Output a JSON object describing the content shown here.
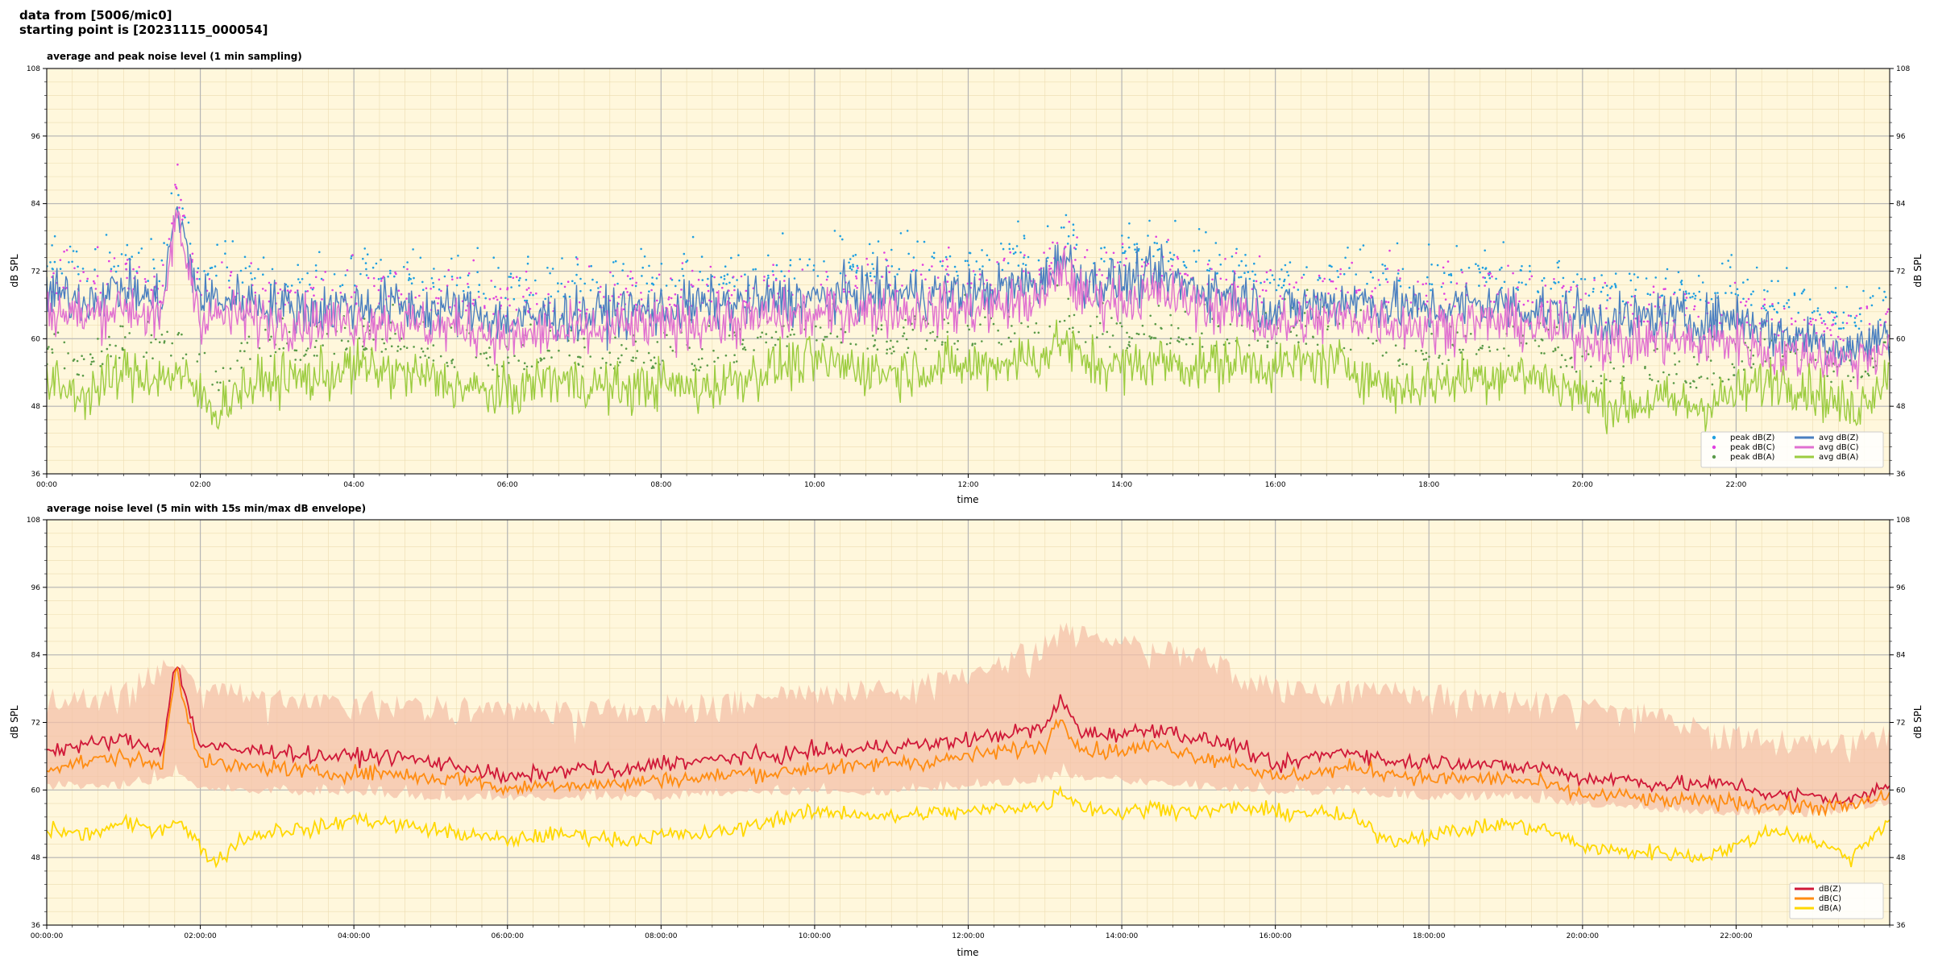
{
  "header": {
    "line1": "data from [5006/mic0]",
    "line2": "starting point is [20231115_000054]"
  },
  "chart_data": [
    {
      "type": "line",
      "title": "average and peak noise level (1 min sampling)",
      "xlabel": "time",
      "ylabel": "dB SPL",
      "ylim": [
        36,
        108
      ],
      "xlim_hours": [
        0,
        24
      ],
      "yticks": [
        "36",
        "48",
        "60",
        "72",
        "84",
        "96",
        "108"
      ],
      "xticks": [
        "00:00",
        "02:00",
        "04:00",
        "06:00",
        "08:00",
        "10:00",
        "12:00",
        "14:00",
        "16:00",
        "18:00",
        "20:00",
        "22:00"
      ],
      "grid": true,
      "legend_position": "lower-right",
      "legend": [
        {
          "label": "peak dB(Z)",
          "kind": "dot",
          "color": "#1f9fe0"
        },
        {
          "label": "peak dB(C)",
          "kind": "dot",
          "color": "#e040e0"
        },
        {
          "label": "peak dB(A)",
          "kind": "dot",
          "color": "#5a9a48"
        },
        {
          "label": "avg dB(Z)",
          "kind": "line",
          "color": "#4a7fc0"
        },
        {
          "label": "avg dB(C)",
          "kind": "line",
          "color": "#e070d0"
        },
        {
          "label": "avg dB(A)",
          "kind": "line",
          "color": "#9ccc40"
        }
      ],
      "series": [
        {
          "name": "avg dB(Z)",
          "color": "#4a7fc0",
          "x": [
            0,
            0.5,
            1,
            1.5,
            1.68,
            2,
            2.5,
            3,
            3.5,
            4,
            4.5,
            5,
            5.5,
            6,
            6.5,
            7,
            7.5,
            8,
            8.5,
            9,
            9.5,
            10,
            10.5,
            11,
            11.5,
            12,
            12.5,
            13,
            13.2,
            13.5,
            14,
            14.5,
            15,
            15.5,
            16,
            16.5,
            17,
            17.5,
            18,
            18.5,
            19,
            19.5,
            20,
            20.5,
            21,
            21.5,
            22,
            22.5,
            23,
            23.5,
            24
          ],
          "y": [
            68,
            67,
            69,
            66,
            83,
            67,
            67,
            66,
            65,
            66,
            66,
            65,
            65,
            63,
            64,
            64,
            65,
            65,
            66,
            66,
            67,
            67,
            68,
            68,
            68,
            68,
            69,
            70,
            75,
            70,
            70,
            71,
            69,
            68,
            65,
            66,
            67,
            66,
            65,
            66,
            66,
            65,
            64,
            63,
            64,
            63,
            64,
            61,
            60,
            58,
            61
          ]
        },
        {
          "name": "avg dB(C)",
          "color": "#e070d0",
          "x": [
            0,
            0.5,
            1,
            1.5,
            1.68,
            2,
            2.5,
            3,
            3.5,
            4,
            4.5,
            5,
            5.5,
            6,
            6.5,
            7,
            7.5,
            8,
            8.5,
            9,
            9.5,
            10,
            10.5,
            11,
            11.5,
            12,
            12.5,
            13,
            13.2,
            13.5,
            14,
            14.5,
            15,
            15.5,
            16,
            16.5,
            17,
            17.5,
            18,
            18.5,
            19,
            19.5,
            20,
            20.5,
            21,
            21.5,
            22,
            22.5,
            23,
            23.5,
            24
          ],
          "y": [
            65,
            64,
            66,
            63,
            82,
            64,
            64,
            63,
            63,
            63,
            63,
            62,
            62,
            60,
            61,
            61,
            62,
            62,
            63,
            63,
            64,
            64,
            65,
            65,
            65,
            65,
            66,
            67,
            73,
            67,
            67,
            68,
            66,
            65,
            62,
            63,
            64,
            63,
            62,
            63,
            63,
            62,
            60,
            59,
            60,
            59,
            60,
            57,
            57,
            56,
            59
          ]
        },
        {
          "name": "avg dB(A)",
          "color": "#9ccc40",
          "x": [
            0,
            0.5,
            1,
            1.5,
            1.68,
            2,
            2.2,
            2.5,
            3,
            3.5,
            4,
            4.5,
            5,
            5.5,
            6,
            6.5,
            7,
            7.5,
            8,
            8.5,
            9,
            9.5,
            10,
            10.5,
            11,
            11.5,
            12,
            12.5,
            13,
            13.2,
            13.5,
            14,
            14.5,
            15,
            15.5,
            16,
            16.5,
            17,
            17.5,
            18,
            18.5,
            19,
            19.5,
            20,
            20.5,
            21,
            21.5,
            22,
            22.5,
            23,
            23.5,
            24
          ],
          "y": [
            52,
            50,
            54,
            53,
            54,
            50,
            47,
            51,
            53,
            53,
            55,
            54,
            53,
            51,
            50,
            53,
            52,
            51,
            52,
            51,
            53,
            55,
            56,
            55,
            54,
            55,
            55,
            56,
            57,
            60,
            56,
            55,
            56,
            55,
            56,
            55,
            56,
            55,
            51,
            52,
            53,
            54,
            53,
            50,
            48,
            49,
            48,
            50,
            53,
            51,
            47,
            54
          ]
        }
      ]
    },
    {
      "type": "line",
      "title": "average noise level (5 min with 15s min/max dB envelope)",
      "xlabel": "time",
      "ylabel": "dB SPL",
      "ylim": [
        36,
        108
      ],
      "xlim_hours": [
        0,
        24
      ],
      "yticks": [
        "36",
        "48",
        "60",
        "72",
        "84",
        "96",
        "108"
      ],
      "xticks": [
        "00:00:00",
        "02:00:00",
        "04:00:00",
        "06:00:00",
        "08:00:00",
        "10:00:00",
        "12:00:00",
        "14:00:00",
        "16:00:00",
        "18:00:00",
        "20:00:00",
        "22:00:00"
      ],
      "grid": true,
      "legend_position": "lower-right",
      "legend": [
        {
          "label": "dB(Z)",
          "kind": "line",
          "color": "#d01838"
        },
        {
          "label": "dB(C)",
          "kind": "line",
          "color": "#ff8c10"
        },
        {
          "label": "dB(A)",
          "kind": "line",
          "color": "#ffd800"
        }
      ],
      "envelope": {
        "color": "#f4c0a8",
        "x": [
          0,
          1,
          1.68,
          2,
          3,
          4,
          5,
          6,
          7,
          8,
          9,
          10,
          11,
          12,
          13,
          13.2,
          14,
          15,
          16,
          17,
          18,
          19,
          20,
          21,
          22,
          23,
          24
        ],
        "ymin": [
          60,
          60,
          62,
          60,
          59,
          59,
          58,
          58,
          58,
          58,
          59,
          59,
          59,
          60,
          61,
          62,
          61,
          60,
          59,
          59,
          58,
          58,
          57,
          56,
          55,
          55,
          57
        ],
        "ymax": [
          78,
          79,
          86,
          80,
          78,
          78,
          77,
          76,
          76,
          77,
          78,
          79,
          80,
          82,
          88,
          90,
          88,
          86,
          80,
          80,
          79,
          78,
          77,
          75,
          72,
          70,
          72
        ]
      },
      "series": [
        {
          "name": "dB(Z)",
          "color": "#d01838",
          "x": [
            0,
            0.5,
            1,
            1.5,
            1.68,
            1.9,
            2,
            2.5,
            3,
            3.5,
            4,
            4.5,
            5,
            5.5,
            6,
            6.5,
            7,
            7.5,
            8,
            8.5,
            9,
            9.5,
            10,
            10.5,
            11,
            11.5,
            12,
            12.5,
            13,
            13.2,
            13.5,
            14,
            14.5,
            15,
            15.5,
            16,
            16.5,
            17,
            17.5,
            18,
            18.5,
            19,
            19.5,
            20,
            20.5,
            21,
            21.5,
            22,
            22.5,
            23,
            23.5,
            24
          ],
          "y": [
            67,
            68,
            69,
            67,
            83,
            72,
            68,
            67,
            67,
            66,
            66,
            66,
            65,
            64,
            62,
            63,
            64,
            63,
            65,
            65,
            66,
            66,
            67,
            67,
            68,
            68,
            69,
            70,
            71,
            76,
            70,
            70,
            71,
            69,
            68,
            64,
            66,
            67,
            65,
            65,
            65,
            64,
            64,
            62,
            62,
            61,
            61,
            61,
            59,
            59,
            58,
            61
          ]
        },
        {
          "name": "dB(C)",
          "color": "#ff8c10",
          "x": [
            0,
            0.5,
            1,
            1.5,
            1.68,
            1.9,
            2,
            2.5,
            3,
            3.5,
            4,
            4.5,
            5,
            5.5,
            6,
            6.5,
            7,
            7.5,
            8,
            8.5,
            9,
            9.5,
            10,
            10.5,
            11,
            11.5,
            12,
            12.5,
            13,
            13.2,
            13.5,
            14,
            14.5,
            15,
            15.5,
            16,
            16.5,
            17,
            17.5,
            18,
            18.5,
            19,
            19.5,
            20,
            20.5,
            21,
            21.5,
            22,
            22.5,
            23,
            23.5,
            24
          ],
          "y": [
            64,
            65,
            66,
            64,
            82,
            70,
            65,
            64,
            64,
            63,
            63,
            63,
            62,
            62,
            60,
            61,
            61,
            61,
            62,
            62,
            63,
            63,
            64,
            64,
            65,
            65,
            66,
            67,
            68,
            73,
            67,
            67,
            68,
            66,
            65,
            62,
            63,
            64,
            63,
            62,
            62,
            62,
            61,
            59,
            59,
            58,
            58,
            58,
            57,
            57,
            57,
            59
          ]
        },
        {
          "name": "dB(A)",
          "color": "#ffd800",
          "x": [
            0,
            0.5,
            1,
            1.5,
            1.68,
            2,
            2.2,
            2.5,
            3,
            3.5,
            4,
            4.5,
            5,
            5.5,
            6,
            6.5,
            7,
            7.5,
            8,
            8.5,
            9,
            9.5,
            10,
            10.5,
            11,
            11.5,
            12,
            12.5,
            13,
            13.2,
            13.5,
            14,
            14.5,
            15,
            15.5,
            16,
            16.5,
            17,
            17.5,
            18,
            18.5,
            19,
            19.5,
            20,
            20.5,
            21,
            21.5,
            22,
            22.5,
            23,
            23.5,
            24
          ],
          "y": [
            53,
            52,
            54,
            53,
            55,
            50,
            47,
            51,
            53,
            53,
            55,
            54,
            53,
            52,
            51,
            52,
            52,
            51,
            52,
            52,
            53,
            55,
            56,
            56,
            55,
            56,
            56,
            57,
            57,
            60,
            57,
            56,
            57,
            56,
            57,
            56,
            56,
            55,
            51,
            52,
            53,
            54,
            53,
            50,
            49,
            49,
            48,
            50,
            53,
            51,
            48,
            55
          ]
        }
      ]
    }
  ]
}
